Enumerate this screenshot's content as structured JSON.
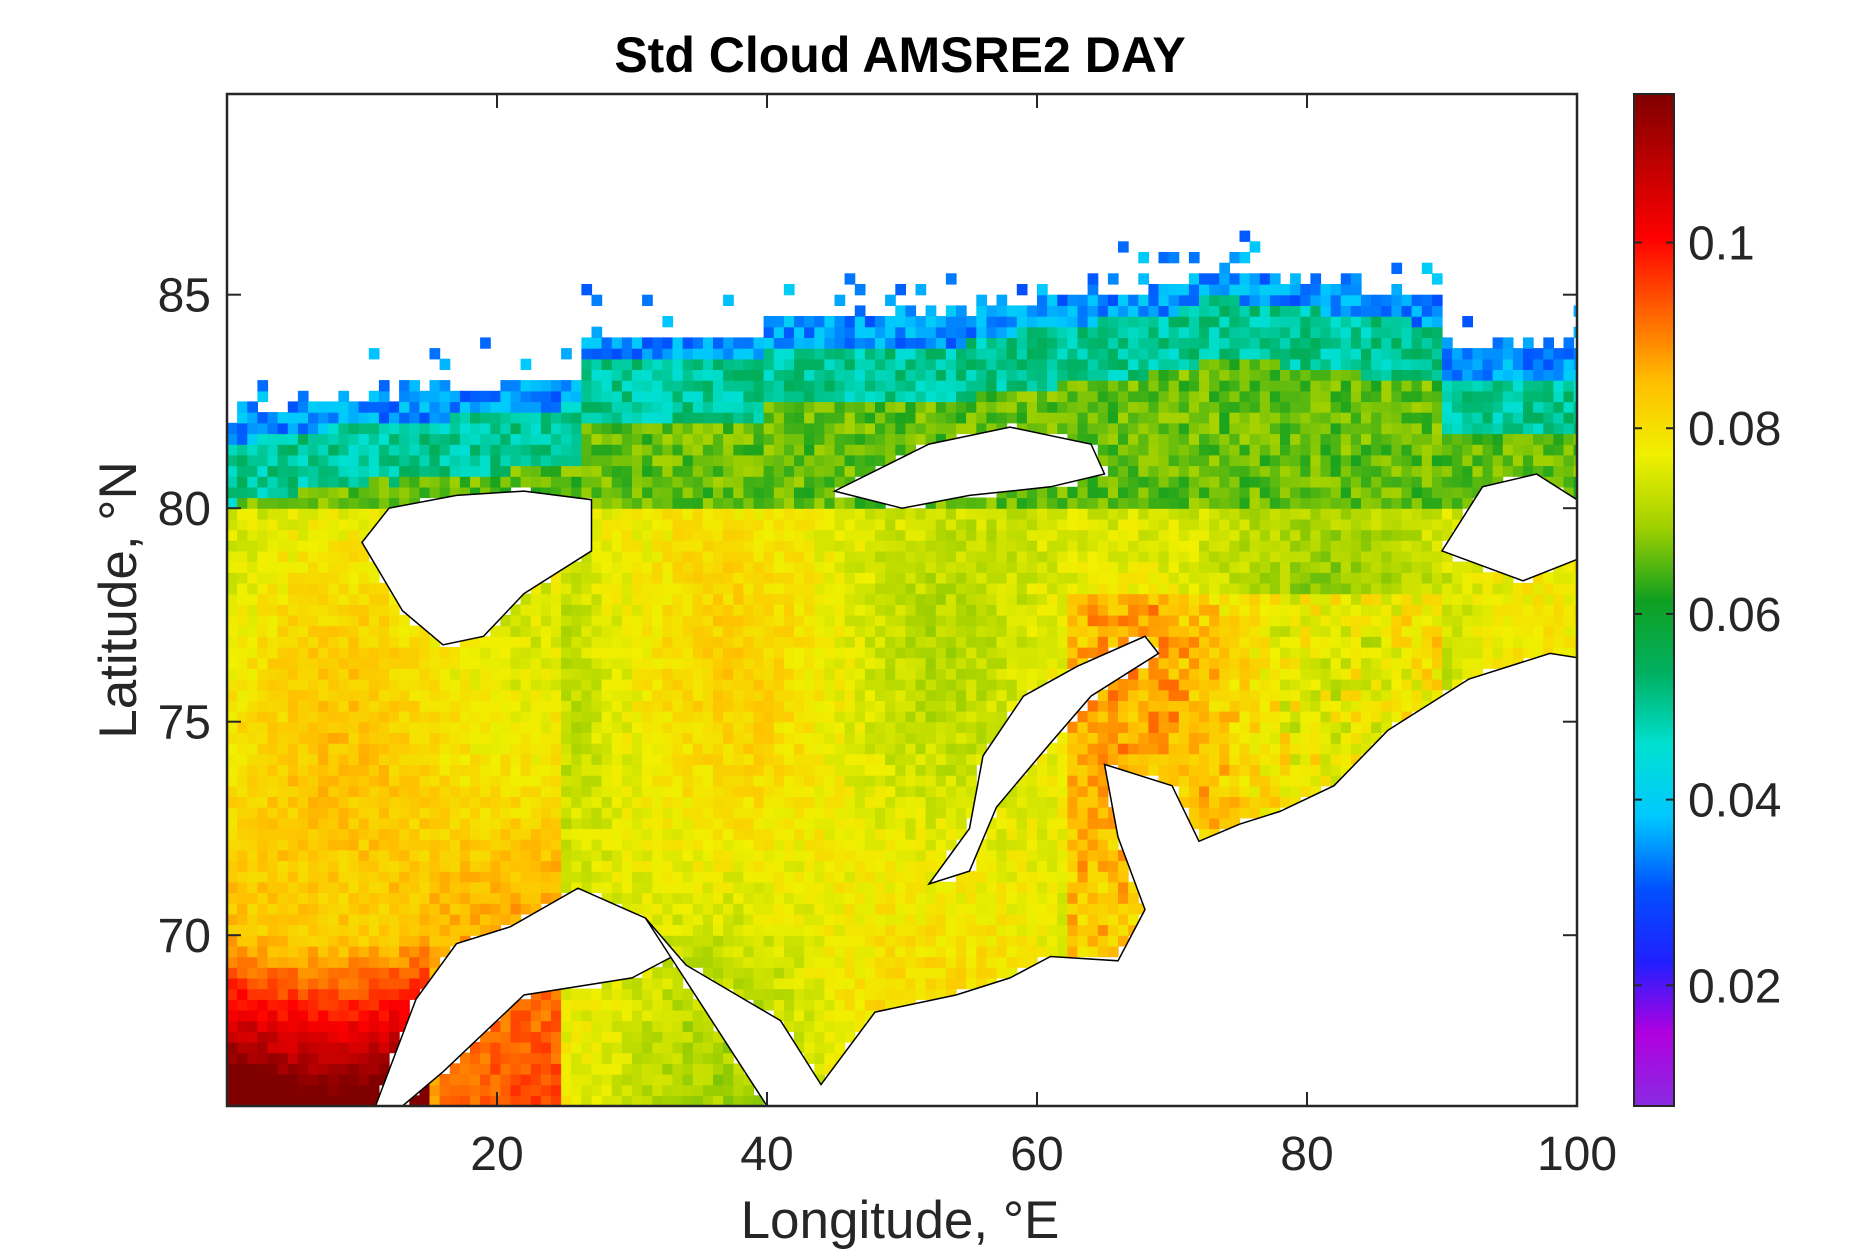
{
  "chart_data": {
    "type": "heatmap",
    "title": "Std Cloud AMSRE2 DAY",
    "xlabel": "Longitude, °E",
    "ylabel": "Latitude, °N",
    "xlim": [
      0,
      100
    ],
    "ylim": [
      66,
      89.7
    ],
    "xticks": [
      20,
      40,
      60,
      80,
      100
    ],
    "yticks": [
      70,
      75,
      80,
      85
    ],
    "colorbar": {
      "ticks": [
        0.02,
        0.04,
        0.06,
        0.08,
        0.1
      ],
      "range": [
        0.007,
        0.116
      ],
      "colormap": [
        "#8a2be2",
        "#b000e0",
        "#2020ff",
        "#0050ff",
        "#00c8ff",
        "#00e0d0",
        "#00b060",
        "#10a020",
        "#a0d000",
        "#f0f000",
        "#ffc000",
        "#ff6000",
        "#ff0000",
        "#c00000",
        "#800000"
      ]
    },
    "land_color": "#ffffff",
    "coastline_color": "#000000",
    "missing_color": "#ffffff"
  }
}
